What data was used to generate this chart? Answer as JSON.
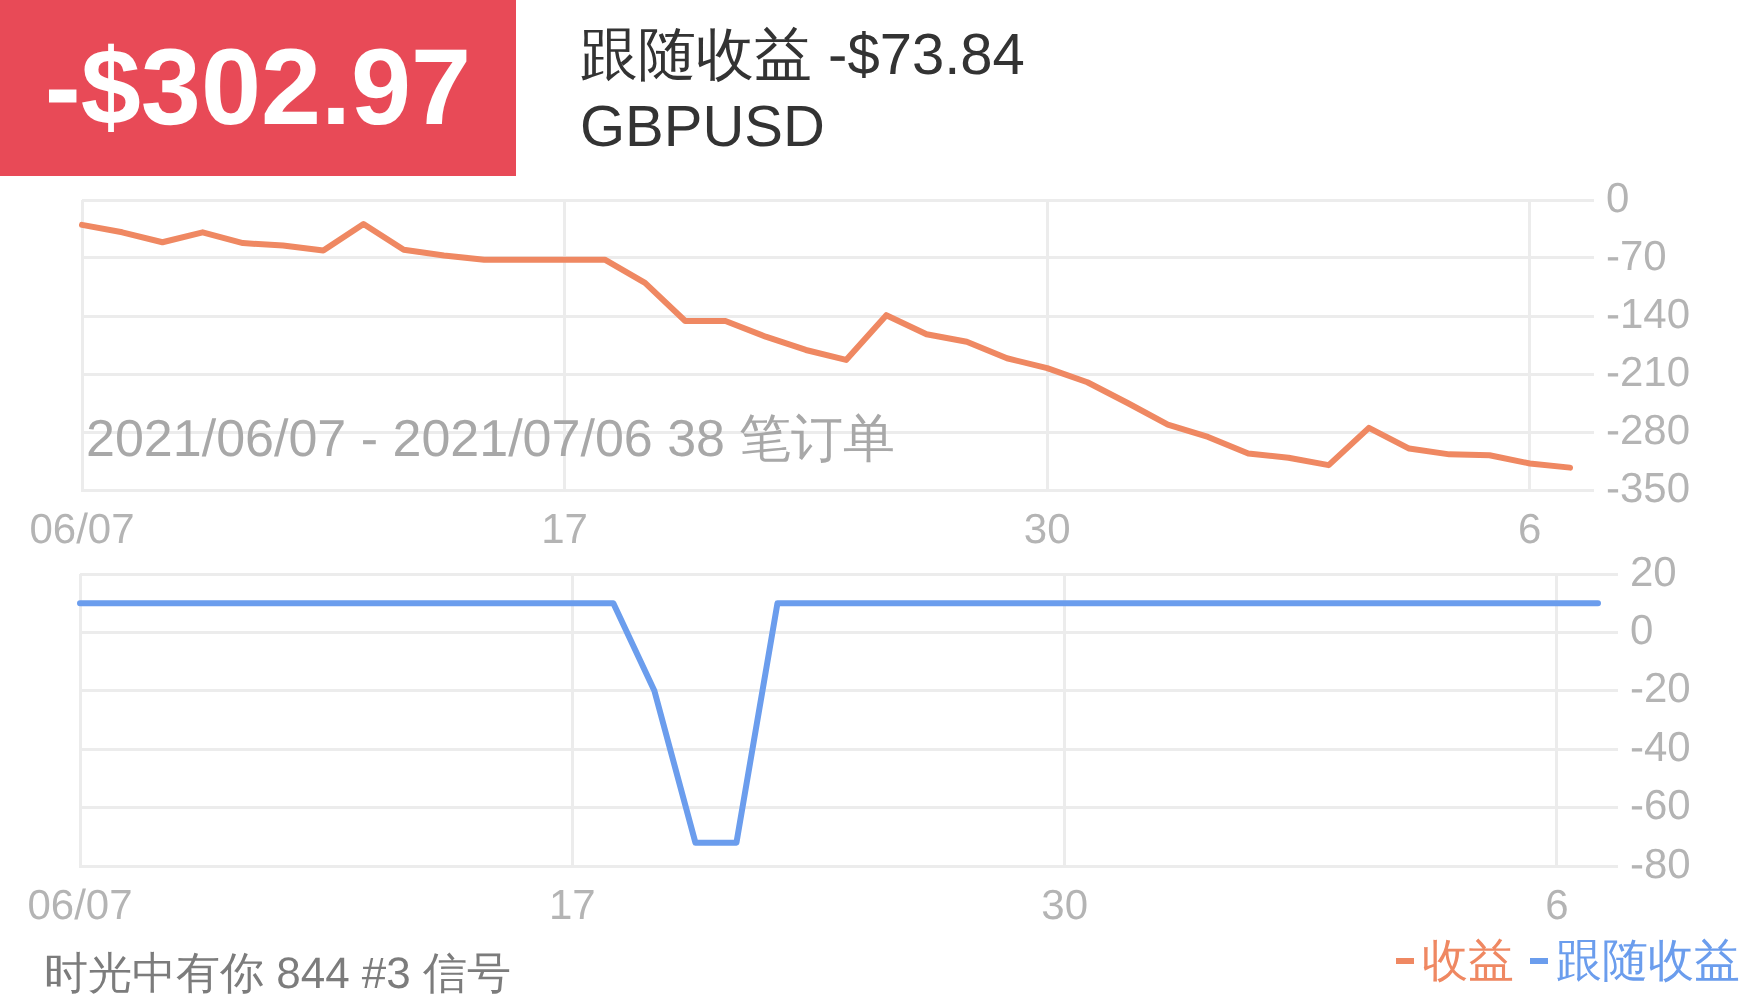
{
  "chart_data": [
    {
      "type": "line",
      "title": "-$302.97",
      "subtitle": "跟随收益 -$73.84",
      "annotations": [
        "GBPUSD",
        "2021/06/07 - 2021/07/06 38 笔订单"
      ],
      "categories": [
        "06/07",
        null,
        null,
        null,
        null,
        null,
        null,
        null,
        null,
        null,
        null,
        null,
        "17",
        null,
        null,
        null,
        null,
        null,
        null,
        null,
        null,
        null,
        null,
        null,
        "30",
        null,
        null,
        null,
        null,
        null,
        null,
        null,
        null,
        null,
        null,
        null,
        "6",
        null
      ],
      "series": [
        {
          "name": "收益",
          "color": "#ef8862",
          "values": [
            -30,
            -39,
            -51,
            -39,
            -52,
            -55,
            -61,
            -29,
            -60,
            -67,
            -72,
            -72,
            -72,
            -72,
            -100,
            -146,
            -146,
            -165,
            -181,
            -193,
            -139,
            -162,
            -171,
            -191,
            -203,
            -220,
            -245,
            -271,
            -286,
            -306,
            -311,
            -320,
            -275,
            -300,
            -307,
            -308,
            -318,
            -323
          ]
        }
      ],
      "ylim": [
        -350,
        0
      ],
      "yticks": [
        0,
        -70,
        -140,
        -210,
        -280,
        -350
      ],
      "grid": true,
      "legend": "bottom right"
    },
    {
      "type": "line",
      "annotations": [
        "时光中有你 844 #3 信号"
      ],
      "categories": [
        "06/07",
        null,
        null,
        null,
        null,
        null,
        null,
        null,
        null,
        null,
        null,
        null,
        "17",
        null,
        null,
        null,
        null,
        null,
        null,
        null,
        null,
        null,
        null,
        null,
        "30",
        null,
        null,
        null,
        null,
        null,
        null,
        null,
        null,
        null,
        null,
        null,
        "6",
        null
      ],
      "series": [
        {
          "name": "跟随收益",
          "color": "#6b9ded",
          "values": [
            10,
            10,
            10,
            10,
            10,
            10,
            10,
            10,
            10,
            10,
            10,
            10,
            10,
            10,
            -20,
            -72,
            -72,
            10,
            10,
            10,
            10,
            10,
            10,
            10,
            10,
            10,
            10,
            10,
            10,
            10,
            10,
            10,
            10,
            10,
            10,
            10,
            10,
            10
          ]
        }
      ],
      "ylim": [
        -80,
        20
      ],
      "yticks": [
        20,
        0,
        -20,
        -40,
        -60,
        -80
      ],
      "grid": true,
      "legend": "bottom right"
    }
  ]
}
